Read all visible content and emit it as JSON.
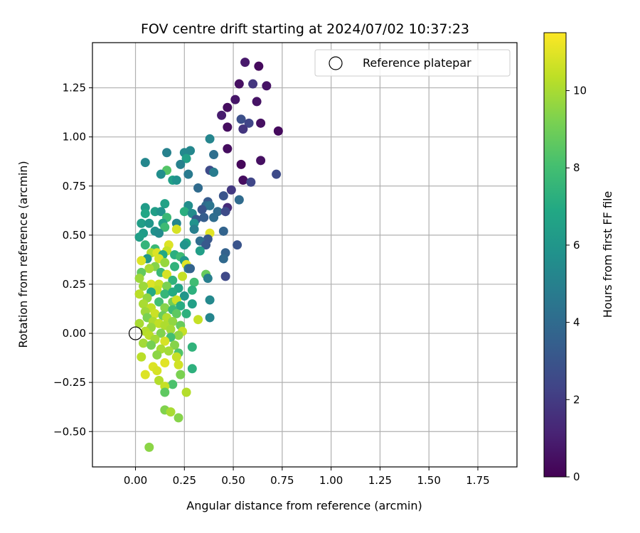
{
  "chart_data": {
    "type": "scatter",
    "title": "FOV centre drift starting at 2024/07/02 10:37:23",
    "xlabel": "Angular distance from reference (arcmin)",
    "ylabel": "Rotation from reference (arcmin)",
    "xlim": [
      -0.22,
      1.95
    ],
    "ylim": [
      -0.68,
      1.48
    ],
    "xticks": [
      "0.00",
      "0.25",
      "0.50",
      "0.75",
      "1.00",
      "1.25",
      "1.50",
      "1.75"
    ],
    "yticks": [
      "−0.50",
      "−0.25",
      "0.00",
      "0.25",
      "0.50",
      "0.75",
      "1.00",
      "1.25"
    ],
    "grid": true,
    "legend": {
      "position": "top-right",
      "entries": [
        "Reference platepar"
      ]
    },
    "reference_point": {
      "x": 0.0,
      "y": 0.0
    },
    "colorbar": {
      "label": "Hours from first FF file",
      "min": 0,
      "max": 11.5,
      "ticks": [
        "0",
        "2",
        "4",
        "6",
        "8",
        "10"
      ],
      "colormap": "viridis"
    },
    "points": [
      {
        "x": 0.56,
        "y": 1.38,
        "c": 0.8
      },
      {
        "x": 0.63,
        "y": 1.36,
        "c": 0.3
      },
      {
        "x": 0.53,
        "y": 1.27,
        "c": 0.5
      },
      {
        "x": 0.6,
        "y": 1.27,
        "c": 1.8
      },
      {
        "x": 0.67,
        "y": 1.26,
        "c": 0.6
      },
      {
        "x": 0.51,
        "y": 1.19,
        "c": 0.7
      },
      {
        "x": 0.62,
        "y": 1.18,
        "c": 0.6
      },
      {
        "x": 0.47,
        "y": 1.15,
        "c": 0.4
      },
      {
        "x": 0.44,
        "y": 1.11,
        "c": 0.9
      },
      {
        "x": 0.54,
        "y": 1.09,
        "c": 2.8
      },
      {
        "x": 0.58,
        "y": 1.07,
        "c": 2.4
      },
      {
        "x": 0.64,
        "y": 1.07,
        "c": 0.5
      },
      {
        "x": 0.47,
        "y": 1.05,
        "c": 0.4
      },
      {
        "x": 0.55,
        "y": 1.04,
        "c": 1.8
      },
      {
        "x": 0.73,
        "y": 1.03,
        "c": 0.3
      },
      {
        "x": 0.38,
        "y": 0.99,
        "c": 5.2
      },
      {
        "x": 0.47,
        "y": 0.94,
        "c": 0.4
      },
      {
        "x": 0.16,
        "y": 0.92,
        "c": 5.0
      },
      {
        "x": 0.25,
        "y": 0.92,
        "c": 5.4
      },
      {
        "x": 0.28,
        "y": 0.93,
        "c": 5.3
      },
      {
        "x": 0.4,
        "y": 0.91,
        "c": 4.2
      },
      {
        "x": 0.26,
        "y": 0.89,
        "c": 6.5
      },
      {
        "x": 0.05,
        "y": 0.87,
        "c": 5.3
      },
      {
        "x": 0.64,
        "y": 0.88,
        "c": 0.5
      },
      {
        "x": 0.23,
        "y": 0.86,
        "c": 5.0
      },
      {
        "x": 0.54,
        "y": 0.86,
        "c": 0.2
      },
      {
        "x": 0.38,
        "y": 0.83,
        "c": 2.6
      },
      {
        "x": 0.16,
        "y": 0.83,
        "c": 8.4
      },
      {
        "x": 0.4,
        "y": 0.82,
        "c": 4.8
      },
      {
        "x": 0.72,
        "y": 0.81,
        "c": 2.6
      },
      {
        "x": 0.13,
        "y": 0.81,
        "c": 5.6
      },
      {
        "x": 0.27,
        "y": 0.81,
        "c": 4.7
      },
      {
        "x": 0.19,
        "y": 0.78,
        "c": 6.5
      },
      {
        "x": 0.21,
        "y": 0.78,
        "c": 5.8
      },
      {
        "x": 0.55,
        "y": 0.78,
        "c": 0.4
      },
      {
        "x": 0.59,
        "y": 0.77,
        "c": 2.4
      },
      {
        "x": 0.32,
        "y": 0.74,
        "c": 4.0
      },
      {
        "x": 0.49,
        "y": 0.73,
        "c": 1.9
      },
      {
        "x": 0.45,
        "y": 0.7,
        "c": 3.0
      },
      {
        "x": 0.53,
        "y": 0.68,
        "c": 4.0
      },
      {
        "x": 0.37,
        "y": 0.67,
        "c": 3.3
      },
      {
        "x": 0.15,
        "y": 0.66,
        "c": 6.6
      },
      {
        "x": 0.27,
        "y": 0.65,
        "c": 5.6
      },
      {
        "x": 0.36,
        "y": 0.65,
        "c": 4.0
      },
      {
        "x": 0.38,
        "y": 0.65,
        "c": 4.4
      },
      {
        "x": 0.47,
        "y": 0.64,
        "c": 1.4
      },
      {
        "x": 0.05,
        "y": 0.64,
        "c": 6.3
      },
      {
        "x": 0.34,
        "y": 0.63,
        "c": 3.0
      },
      {
        "x": 0.42,
        "y": 0.62,
        "c": 4.0
      },
      {
        "x": 0.46,
        "y": 0.62,
        "c": 2.6
      },
      {
        "x": 0.1,
        "y": 0.62,
        "c": 6.4
      },
      {
        "x": 0.13,
        "y": 0.62,
        "c": 5.9
      },
      {
        "x": 0.25,
        "y": 0.62,
        "c": 7.2
      },
      {
        "x": 0.29,
        "y": 0.61,
        "c": 5.5
      },
      {
        "x": 0.05,
        "y": 0.61,
        "c": 6.8
      },
      {
        "x": 0.16,
        "y": 0.59,
        "c": 7.7
      },
      {
        "x": 0.35,
        "y": 0.59,
        "c": 3.4
      },
      {
        "x": 0.31,
        "y": 0.58,
        "c": 3.2
      },
      {
        "x": 0.4,
        "y": 0.59,
        "c": 4.1
      },
      {
        "x": 0.03,
        "y": 0.56,
        "c": 6.4
      },
      {
        "x": 0.07,
        "y": 0.56,
        "c": 6.0
      },
      {
        "x": 0.14,
        "y": 0.56,
        "c": 6.5
      },
      {
        "x": 0.21,
        "y": 0.56,
        "c": 5.2
      },
      {
        "x": 0.3,
        "y": 0.56,
        "c": 5.8
      },
      {
        "x": 0.15,
        "y": 0.54,
        "c": 7.8
      },
      {
        "x": 0.3,
        "y": 0.53,
        "c": 4.9
      },
      {
        "x": 0.21,
        "y": 0.53,
        "c": 10.8
      },
      {
        "x": 0.1,
        "y": 0.52,
        "c": 5.8
      },
      {
        "x": 0.45,
        "y": 0.52,
        "c": 3.7
      },
      {
        "x": 0.38,
        "y": 0.51,
        "c": 11.0
      },
      {
        "x": 0.04,
        "y": 0.51,
        "c": 6.3
      },
      {
        "x": 0.12,
        "y": 0.51,
        "c": 5.5
      },
      {
        "x": 0.02,
        "y": 0.49,
        "c": 6.4
      },
      {
        "x": 0.37,
        "y": 0.48,
        "c": 3.1
      },
      {
        "x": 0.26,
        "y": 0.46,
        "c": 6.7
      },
      {
        "x": 0.33,
        "y": 0.47,
        "c": 4.1
      },
      {
        "x": 0.05,
        "y": 0.45,
        "c": 7.5
      },
      {
        "x": 0.17,
        "y": 0.45,
        "c": 10.9
      },
      {
        "x": 0.25,
        "y": 0.45,
        "c": 5.9
      },
      {
        "x": 0.36,
        "y": 0.45,
        "c": 3.2
      },
      {
        "x": 0.52,
        "y": 0.45,
        "c": 3.0
      },
      {
        "x": 0.1,
        "y": 0.43,
        "c": 7.7
      },
      {
        "x": 0.33,
        "y": 0.42,
        "c": 6.4
      },
      {
        "x": 0.16,
        "y": 0.42,
        "c": 10.5
      },
      {
        "x": 0.08,
        "y": 0.41,
        "c": 10.2
      },
      {
        "x": 0.11,
        "y": 0.41,
        "c": 10.9
      },
      {
        "x": 0.46,
        "y": 0.41,
        "c": 3.6
      },
      {
        "x": 0.14,
        "y": 0.4,
        "c": 6.9
      },
      {
        "x": 0.2,
        "y": 0.4,
        "c": 7.2
      },
      {
        "x": 0.23,
        "y": 0.39,
        "c": 7.8
      },
      {
        "x": 0.45,
        "y": 0.38,
        "c": 3.9
      },
      {
        "x": 0.06,
        "y": 0.38,
        "c": 6.0
      },
      {
        "x": 0.12,
        "y": 0.38,
        "c": 10.8
      },
      {
        "x": 0.03,
        "y": 0.37,
        "c": 10.9
      },
      {
        "x": 0.25,
        "y": 0.37,
        "c": 6.0
      },
      {
        "x": 0.15,
        "y": 0.36,
        "c": 9.7
      },
      {
        "x": 0.26,
        "y": 0.35,
        "c": 11.0
      },
      {
        "x": 0.1,
        "y": 0.34,
        "c": 9.4
      },
      {
        "x": 0.2,
        "y": 0.34,
        "c": 7.4
      },
      {
        "x": 0.27,
        "y": 0.33,
        "c": 4.5
      },
      {
        "x": 0.07,
        "y": 0.33,
        "c": 10.0
      },
      {
        "x": 0.28,
        "y": 0.33,
        "c": 3.7
      },
      {
        "x": 0.03,
        "y": 0.31,
        "c": 8.7
      },
      {
        "x": 0.13,
        "y": 0.31,
        "c": 7.7
      },
      {
        "x": 0.16,
        "y": 0.3,
        "c": 10.8
      },
      {
        "x": 0.36,
        "y": 0.3,
        "c": 8.8
      },
      {
        "x": 0.24,
        "y": 0.29,
        "c": 10.5
      },
      {
        "x": 0.02,
        "y": 0.28,
        "c": 9.8
      },
      {
        "x": 0.37,
        "y": 0.28,
        "c": 4.9
      },
      {
        "x": 0.46,
        "y": 0.29,
        "c": 2.5
      },
      {
        "x": 0.19,
        "y": 0.27,
        "c": 7.4
      },
      {
        "x": 0.3,
        "y": 0.26,
        "c": 7.9
      },
      {
        "x": 0.08,
        "y": 0.25,
        "c": 10.9
      },
      {
        "x": 0.12,
        "y": 0.25,
        "c": 10.6
      },
      {
        "x": 0.04,
        "y": 0.24,
        "c": 9.8
      },
      {
        "x": 0.16,
        "y": 0.24,
        "c": 9.2
      },
      {
        "x": 0.22,
        "y": 0.23,
        "c": 6.7
      },
      {
        "x": 0.11,
        "y": 0.22,
        "c": 10.4
      },
      {
        "x": 0.29,
        "y": 0.22,
        "c": 7.3
      },
      {
        "x": 0.08,
        "y": 0.21,
        "c": 7.0
      },
      {
        "x": 0.02,
        "y": 0.2,
        "c": 10.3
      },
      {
        "x": 0.15,
        "y": 0.2,
        "c": 7.6
      },
      {
        "x": 0.19,
        "y": 0.21,
        "c": 7.0
      },
      {
        "x": 0.25,
        "y": 0.19,
        "c": 6.0
      },
      {
        "x": 0.06,
        "y": 0.18,
        "c": 9.6
      },
      {
        "x": 0.19,
        "y": 0.16,
        "c": 9.0
      },
      {
        "x": 0.38,
        "y": 0.17,
        "c": 5.4
      },
      {
        "x": 0.21,
        "y": 0.17,
        "c": 10.6
      },
      {
        "x": 0.12,
        "y": 0.16,
        "c": 8.0
      },
      {
        "x": 0.29,
        "y": 0.15,
        "c": 6.5
      },
      {
        "x": 0.04,
        "y": 0.15,
        "c": 10.0
      },
      {
        "x": 0.23,
        "y": 0.14,
        "c": 7.1
      },
      {
        "x": 0.08,
        "y": 0.13,
        "c": 10.4
      },
      {
        "x": 0.15,
        "y": 0.13,
        "c": 9.4
      },
      {
        "x": 0.19,
        "y": 0.12,
        "c": 7.8
      },
      {
        "x": 0.05,
        "y": 0.11,
        "c": 9.8
      },
      {
        "x": 0.1,
        "y": 0.1,
        "c": 10.6
      },
      {
        "x": 0.21,
        "y": 0.1,
        "c": 8.6
      },
      {
        "x": 0.26,
        "y": 0.1,
        "c": 7.3
      },
      {
        "x": 0.14,
        "y": 0.09,
        "c": 8.9
      },
      {
        "x": 0.06,
        "y": 0.08,
        "c": 9.2
      },
      {
        "x": 0.16,
        "y": 0.08,
        "c": 10.2
      },
      {
        "x": 0.38,
        "y": 0.08,
        "c": 5.2
      },
      {
        "x": 0.32,
        "y": 0.07,
        "c": 10.5
      },
      {
        "x": 0.09,
        "y": 0.06,
        "c": 10.1
      },
      {
        "x": 0.19,
        "y": 0.06,
        "c": 9.6
      },
      {
        "x": 0.12,
        "y": 0.05,
        "c": 10.4
      },
      {
        "x": 0.02,
        "y": 0.05,
        "c": 10.0
      },
      {
        "x": 0.23,
        "y": 0.04,
        "c": 8.8
      },
      {
        "x": 0.15,
        "y": 0.04,
        "c": 10.1
      },
      {
        "x": 0.08,
        "y": 0.03,
        "c": 9.7
      },
      {
        "x": 0.18,
        "y": 0.02,
        "c": 9.9
      },
      {
        "x": 0.05,
        "y": 0.01,
        "c": 10.2
      },
      {
        "x": 0.24,
        "y": 0.01,
        "c": 10.5
      },
      {
        "x": 0.13,
        "y": 0.0,
        "c": 9.3
      },
      {
        "x": 0.22,
        "y": -0.01,
        "c": 9.6
      },
      {
        "x": 0.07,
        "y": -0.01,
        "c": 10.3
      },
      {
        "x": 0.18,
        "y": -0.02,
        "c": 8.0
      },
      {
        "x": 0.1,
        "y": -0.03,
        "c": 9.9
      },
      {
        "x": 0.15,
        "y": -0.04,
        "c": 10.8
      },
      {
        "x": 0.04,
        "y": -0.05,
        "c": 9.9
      },
      {
        "x": 0.2,
        "y": -0.06,
        "c": 9.4
      },
      {
        "x": 0.08,
        "y": -0.06,
        "c": 9.1
      },
      {
        "x": 0.29,
        "y": -0.07,
        "c": 7.4
      },
      {
        "x": 0.13,
        "y": -0.08,
        "c": 10.0
      },
      {
        "x": 0.17,
        "y": -0.09,
        "c": 9.9
      },
      {
        "x": 0.22,
        "y": -0.1,
        "c": 8.3
      },
      {
        "x": 0.11,
        "y": -0.11,
        "c": 9.5
      },
      {
        "x": 0.03,
        "y": -0.12,
        "c": 10.3
      },
      {
        "x": 0.21,
        "y": -0.12,
        "c": 10.5
      },
      {
        "x": 0.15,
        "y": -0.15,
        "c": 11.0
      },
      {
        "x": 0.22,
        "y": -0.16,
        "c": 10.7
      },
      {
        "x": 0.09,
        "y": -0.17,
        "c": 10.9
      },
      {
        "x": 0.29,
        "y": -0.18,
        "c": 7.3
      },
      {
        "x": 0.11,
        "y": -0.19,
        "c": 10.8
      },
      {
        "x": 0.05,
        "y": -0.21,
        "c": 10.9
      },
      {
        "x": 0.23,
        "y": -0.21,
        "c": 9.2
      },
      {
        "x": 0.12,
        "y": -0.24,
        "c": 10.2
      },
      {
        "x": 0.19,
        "y": -0.26,
        "c": 8.2
      },
      {
        "x": 0.15,
        "y": -0.27,
        "c": 10.5
      },
      {
        "x": 0.26,
        "y": -0.3,
        "c": 10.2
      },
      {
        "x": 0.15,
        "y": -0.3,
        "c": 8.6
      },
      {
        "x": 0.15,
        "y": -0.39,
        "c": 9.3
      },
      {
        "x": 0.18,
        "y": -0.4,
        "c": 10.0
      },
      {
        "x": 0.22,
        "y": -0.43,
        "c": 9.4
      },
      {
        "x": 0.07,
        "y": -0.58,
        "c": 9.5
      }
    ]
  }
}
